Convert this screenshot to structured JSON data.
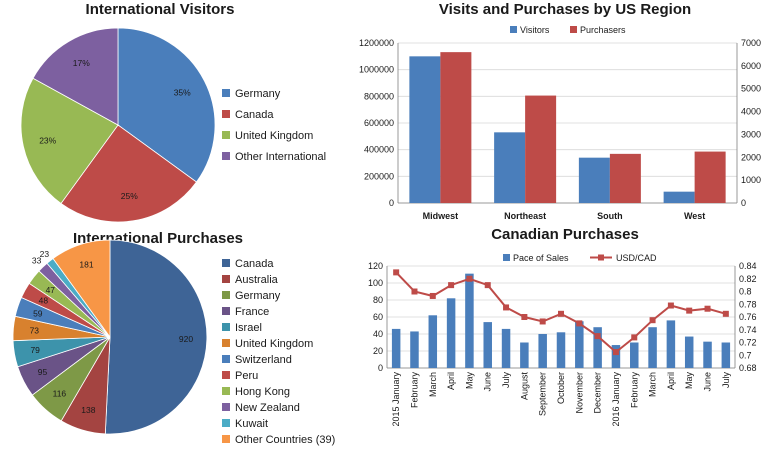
{
  "chart_data": [
    {
      "type": "pie",
      "title": "International Visitors",
      "slices": [
        {
          "label": "Germany",
          "value": 35,
          "value_label": "35%",
          "color": "#4a7ebb"
        },
        {
          "label": "Canada",
          "value": 25,
          "value_label": "25%",
          "color": "#be4b48"
        },
        {
          "label": "United Kingdom",
          "value": 23,
          "value_label": "23%",
          "color": "#98b954"
        },
        {
          "label": "Other International",
          "value": 17,
          "value_label": "17%",
          "color": "#7d60a0"
        }
      ],
      "legend_position": "right"
    },
    {
      "type": "bar",
      "title": "Visits and Purchases by US Region",
      "categories": [
        "Midwest",
        "Northeast",
        "South",
        "West"
      ],
      "series": [
        {
          "name": "Visitors",
          "axis": "left",
          "color": "#4a7ebb",
          "values": [
            1100000,
            530000,
            340000,
            85000
          ]
        },
        {
          "name": "Purchasers",
          "axis": "right",
          "color": "#be4b48",
          "values": [
            6600,
            4700,
            2150,
            2250
          ]
        }
      ],
      "ylim_left": [
        0,
        1200000
      ],
      "yticks_left": [
        "0",
        "200000",
        "400000",
        "600000",
        "800000",
        "1000000",
        "1200000"
      ],
      "ylim_right": [
        0,
        7000
      ],
      "yticks_right": [
        "0",
        "1000",
        "2000",
        "3000",
        "4000",
        "5000",
        "6000",
        "7000"
      ],
      "legend_position": "top"
    },
    {
      "type": "pie",
      "title": "International Purchases",
      "slices": [
        {
          "label": "Canada",
          "value": 920,
          "value_label": "920",
          "color": "#3e6496"
        },
        {
          "label": "Australia",
          "value": 138,
          "value_label": "138",
          "color": "#a44441"
        },
        {
          "label": "Germany",
          "value": 116,
          "value_label": "116",
          "color": "#7e9947"
        },
        {
          "label": "France",
          "value": 95,
          "value_label": "95",
          "color": "#6a5387"
        },
        {
          "label": "Israel",
          "value": 79,
          "value_label": "79",
          "color": "#3d93ab"
        },
        {
          "label": "United Kingdom",
          "value": 73,
          "value_label": "73",
          "color": "#d8812e"
        },
        {
          "label": "Switzerland",
          "value": 59,
          "value_label": "59",
          "color": "#4a7ebb"
        },
        {
          "label": "Peru",
          "value": 48,
          "value_label": "48",
          "color": "#be4b48"
        },
        {
          "label": "Hong Kong",
          "value": 47,
          "value_label": "47",
          "color": "#98b954"
        },
        {
          "label": "New Zealand",
          "value": 33,
          "value_label": "33",
          "color": "#7d60a0"
        },
        {
          "label": "Kuwait",
          "value": 23,
          "value_label": "23",
          "color": "#4bacc6"
        },
        {
          "label": "Other Countries (39)",
          "value": 181,
          "value_label": "181",
          "color": "#f79646"
        }
      ],
      "legend_position": "right"
    },
    {
      "type": "bar",
      "title": "Canadian Purchases",
      "x": [
        "2015 January",
        "February",
        "March",
        "April",
        "May",
        "June",
        "July",
        "August",
        "September",
        "October",
        "November",
        "December",
        "2016 January",
        "February",
        "March",
        "April",
        "May",
        "June",
        "July"
      ],
      "series": [
        {
          "name": "Pace of Sales",
          "kind": "bar",
          "axis": "left",
          "color": "#4a7ebb",
          "values": [
            46,
            43,
            62,
            82,
            111,
            54,
            46,
            30,
            40,
            42,
            55,
            48,
            27,
            30,
            48,
            56,
            37,
            31,
            30
          ]
        },
        {
          "name": "USD/CAD",
          "kind": "line",
          "axis": "right",
          "color": "#be4b48",
          "values": [
            0.83,
            0.8,
            0.793,
            0.81,
            0.82,
            0.81,
            0.775,
            0.76,
            0.753,
            0.765,
            0.75,
            0.73,
            0.705,
            0.728,
            0.755,
            0.778,
            0.77,
            0.773,
            0.765
          ]
        }
      ],
      "ylim_left": [
        0,
        120
      ],
      "yticks_left": [
        "0",
        "20",
        "40",
        "60",
        "80",
        "100",
        "120"
      ],
      "ylim_right": [
        0.68,
        0.84
      ],
      "yticks_right": [
        "0.68",
        "0.7",
        "0.72",
        "0.74",
        "0.76",
        "0.78",
        "0.8",
        "0.82",
        "0.84"
      ],
      "legend_position": "top"
    }
  ]
}
